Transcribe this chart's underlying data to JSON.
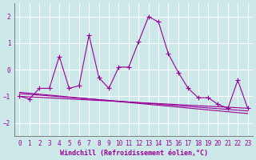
{
  "xlabel": "Windchill (Refroidissement éolien,°C)",
  "background_color": "#cce8e8",
  "grid_color": "#ffffff",
  "line_color": "#990099",
  "tick_color": "#990099",
  "ylim": [
    -2.5,
    2.5
  ],
  "xlim": [
    -0.5,
    23.5
  ],
  "yticks": [
    -2,
    -1,
    0,
    1,
    2
  ],
  "xticks": [
    0,
    1,
    2,
    3,
    4,
    5,
    6,
    7,
    8,
    9,
    10,
    11,
    12,
    13,
    14,
    15,
    16,
    17,
    18,
    19,
    20,
    21,
    22,
    23
  ],
  "series1_x": [
    0,
    1,
    2,
    3,
    4,
    5,
    6,
    7,
    8,
    9,
    10,
    11,
    12,
    13,
    14,
    15,
    16,
    17,
    18,
    19,
    20,
    21,
    22,
    23
  ],
  "series1_y": [
    -1.0,
    -1.1,
    -0.7,
    -0.7,
    0.5,
    -0.7,
    -0.6,
    1.3,
    -0.3,
    -0.7,
    0.1,
    0.1,
    1.05,
    2.0,
    1.8,
    0.6,
    -0.1,
    -0.7,
    -1.05,
    -1.05,
    -1.3,
    -1.45,
    -0.4,
    -1.45
  ],
  "trend1_x": [
    0,
    23
  ],
  "trend1_y": [
    -1.0,
    -1.45
  ],
  "trend2_x": [
    0,
    23
  ],
  "trend2_y": [
    -0.9,
    -1.55
  ],
  "trend3_x": [
    0,
    23
  ],
  "trend3_y": [
    -0.85,
    -1.65
  ],
  "marker": "+",
  "markersize": 4,
  "linewidth": 0.8,
  "tick_fontsize": 5.5,
  "label_fontsize": 6.0
}
